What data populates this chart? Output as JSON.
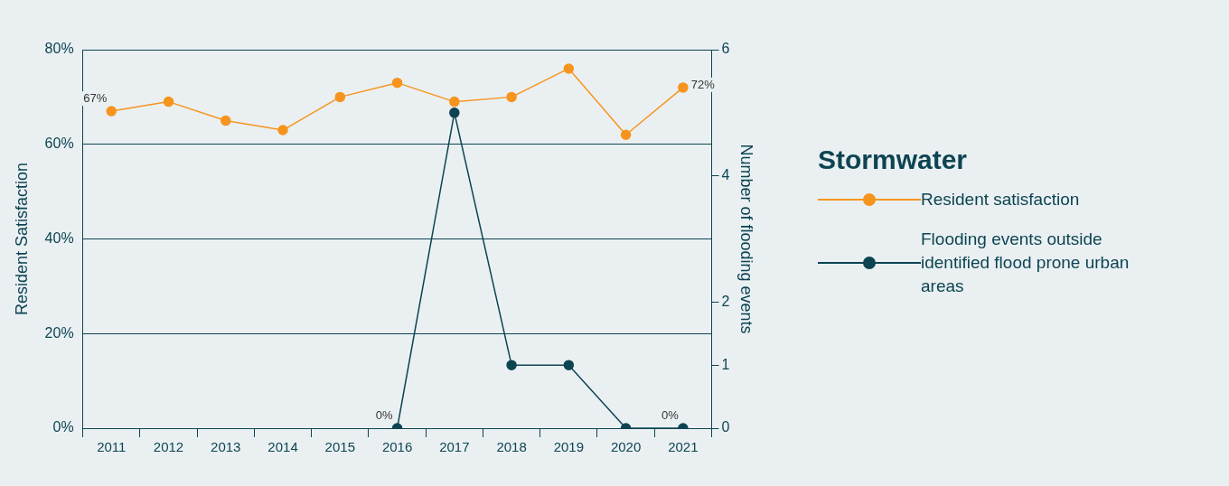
{
  "chart_data": {
    "type": "line",
    "categories": [
      "2011",
      "2012",
      "2013",
      "2014",
      "2015",
      "2016",
      "2017",
      "2018",
      "2019",
      "2020",
      "2021"
    ],
    "ylabel": "Resident Satisfaction",
    "y2label": "Number of flooding events",
    "legend_title": "Stormwater",
    "ylim": [
      0,
      80
    ],
    "yticks": [
      {
        "value": 0,
        "label": "0%"
      },
      {
        "value": 20,
        "label": "20%"
      },
      {
        "value": 40,
        "label": "40%"
      },
      {
        "value": 60,
        "label": "60%"
      },
      {
        "value": 80,
        "label": "80%"
      }
    ],
    "y2lim": [
      0,
      6
    ],
    "y2ticks": [
      0,
      1,
      2,
      4,
      6
    ],
    "series": [
      {
        "name": "Resident satisfaction",
        "color": "#f7941d",
        "values": [
          67,
          69,
          65,
          63,
          70,
          73,
          69,
          70,
          76,
          62,
          72
        ],
        "value_labels": [
          "67%",
          null,
          null,
          null,
          null,
          null,
          null,
          null,
          null,
          null,
          "72%"
        ]
      },
      {
        "name": "Flooding events outside identified flood prone urban areas",
        "color": "#0d4452",
        "axis": "y2",
        "values": [
          null,
          null,
          null,
          null,
          null,
          0,
          5,
          1,
          1,
          0,
          0
        ],
        "value_labels": [
          null,
          null,
          null,
          null,
          null,
          "0%",
          null,
          null,
          null,
          null,
          "0%"
        ]
      }
    ],
    "grid": "y",
    "legend": "right",
    "marker": "circle",
    "line_style": "solid"
  }
}
